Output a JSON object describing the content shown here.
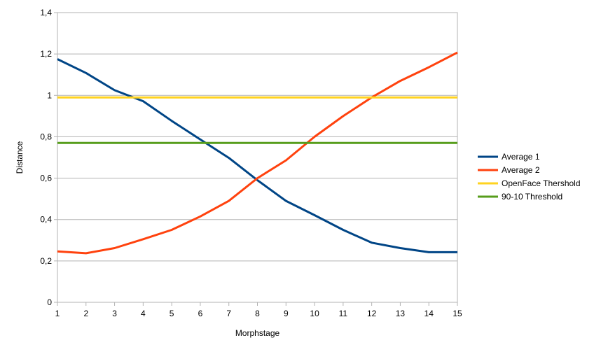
{
  "chart_data": {
    "type": "line",
    "xlabel": "Morphstage",
    "ylabel": "Distance",
    "x": [
      1,
      2,
      3,
      4,
      5,
      6,
      7,
      8,
      9,
      10,
      11,
      12,
      13,
      14,
      15
    ],
    "xlim": [
      1,
      15
    ],
    "ylim": [
      0,
      1.4
    ],
    "yticks": [
      "0",
      "0,2",
      "0,4",
      "0,6",
      "0,8",
      "1",
      "1,2",
      "1,4"
    ],
    "ytick_values": [
      0,
      0.2,
      0.4,
      0.6,
      0.8,
      1.0,
      1.2,
      1.4
    ],
    "xticks": [
      "1",
      "2",
      "3",
      "4",
      "5",
      "6",
      "7",
      "8",
      "9",
      "10",
      "11",
      "12",
      "13",
      "14",
      "15"
    ],
    "grid": true,
    "legend_position": "right",
    "series": [
      {
        "name": "Average 1",
        "color": "#004586",
        "values": [
          1.175,
          1.108,
          1.025,
          0.972,
          0.877,
          0.787,
          0.698,
          0.59,
          0.49,
          0.421,
          0.35,
          0.288,
          0.262,
          0.242,
          0.242
        ]
      },
      {
        "name": "Average 2",
        "color": "#ff420e",
        "values": [
          0.246,
          0.237,
          0.262,
          0.305,
          0.35,
          0.415,
          0.49,
          0.6,
          0.686,
          0.8,
          0.9,
          0.99,
          1.07,
          1.136,
          1.207
        ]
      },
      {
        "name": "OpenFace Thershold",
        "color": "#ffd320",
        "values": [
          0.99,
          0.99,
          0.99,
          0.99,
          0.99,
          0.99,
          0.99,
          0.99,
          0.99,
          0.99,
          0.99,
          0.99,
          0.99,
          0.99,
          0.99
        ]
      },
      {
        "name": "90-10 Threshold",
        "color": "#579d1c",
        "values": [
          0.77,
          0.77,
          0.77,
          0.77,
          0.77,
          0.77,
          0.77,
          0.77,
          0.77,
          0.77,
          0.77,
          0.77,
          0.77,
          0.77,
          0.77
        ]
      }
    ]
  }
}
